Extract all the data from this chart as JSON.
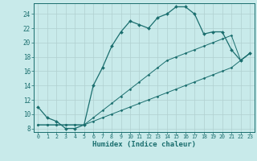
{
  "xlabel": "Humidex (Indice chaleur)",
  "background_color": "#c8eaea",
  "grid_color": "#b0d0d0",
  "line_color": "#1a6e6e",
  "xlim": [
    -0.5,
    23.5
  ],
  "ylim": [
    7.5,
    25.5
  ],
  "xticks": [
    0,
    1,
    2,
    3,
    4,
    5,
    6,
    7,
    8,
    9,
    10,
    11,
    12,
    13,
    14,
    15,
    16,
    17,
    18,
    19,
    20,
    21,
    22,
    23
  ],
  "yticks": [
    8,
    10,
    12,
    14,
    16,
    18,
    20,
    22,
    24
  ],
  "line1_x": [
    0,
    1,
    2,
    3,
    4,
    5,
    6,
    7,
    8,
    9,
    10,
    11,
    12,
    13,
    14,
    15,
    16,
    17,
    18,
    19,
    20,
    21,
    22,
    23
  ],
  "line1_y": [
    11,
    9.5,
    9,
    8,
    8,
    8.5,
    14,
    16.5,
    19.5,
    21.5,
    23,
    22.5,
    22,
    23.5,
    24,
    25,
    25,
    24,
    21.2,
    21.5,
    21.5,
    19,
    17.5,
    18.5
  ],
  "line2_x": [
    0,
    1,
    2,
    3,
    4,
    5,
    6,
    7,
    8,
    9,
    10,
    11,
    12,
    13,
    14,
    15,
    16,
    17,
    18,
    19,
    20,
    21,
    22,
    23
  ],
  "line2_y": [
    8.5,
    8.5,
    8.5,
    8.5,
    8.5,
    8.5,
    9.0,
    9.5,
    10.0,
    10.5,
    11.0,
    11.5,
    12.0,
    12.5,
    13.0,
    13.5,
    14.0,
    14.5,
    15.0,
    15.5,
    16.0,
    16.5,
    17.5,
    18.5
  ],
  "line3_x": [
    0,
    1,
    2,
    3,
    4,
    5,
    6,
    7,
    8,
    9,
    10,
    11,
    12,
    13,
    14,
    15,
    16,
    17,
    18,
    19,
    20,
    21,
    22,
    23
  ],
  "line3_y": [
    8.5,
    8.5,
    8.5,
    8.5,
    8.5,
    8.5,
    9.5,
    10.5,
    11.5,
    12.5,
    13.5,
    14.5,
    15.5,
    16.5,
    17.5,
    18.0,
    18.5,
    19.0,
    19.5,
    20.0,
    20.5,
    21.0,
    17.5,
    18.5
  ]
}
